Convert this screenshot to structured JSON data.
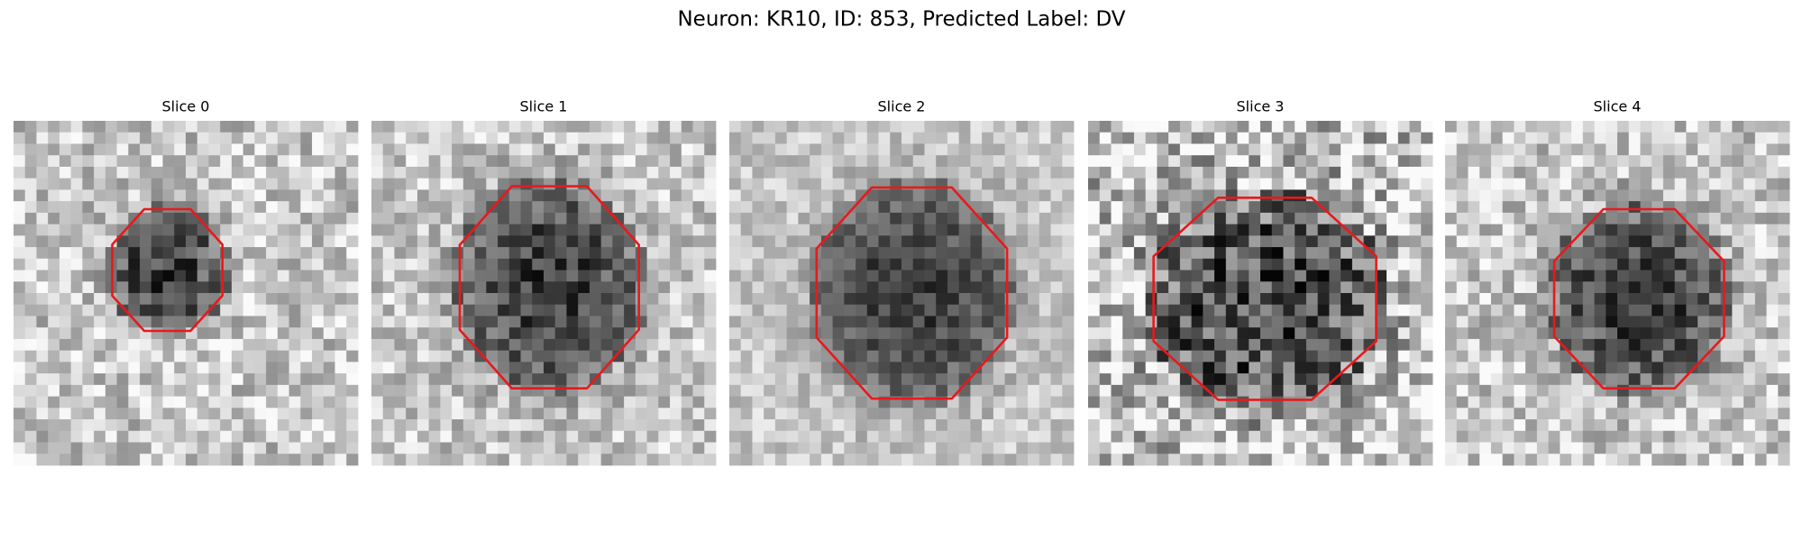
{
  "title": "Neuron: KR10, ID: 853, Predicted Label: DV",
  "panels": [
    {
      "label": "Slice 0"
    },
    {
      "label": "Slice 1"
    },
    {
      "label": "Slice 2"
    },
    {
      "label": "Slice 3"
    },
    {
      "label": "Slice 4"
    }
  ]
}
